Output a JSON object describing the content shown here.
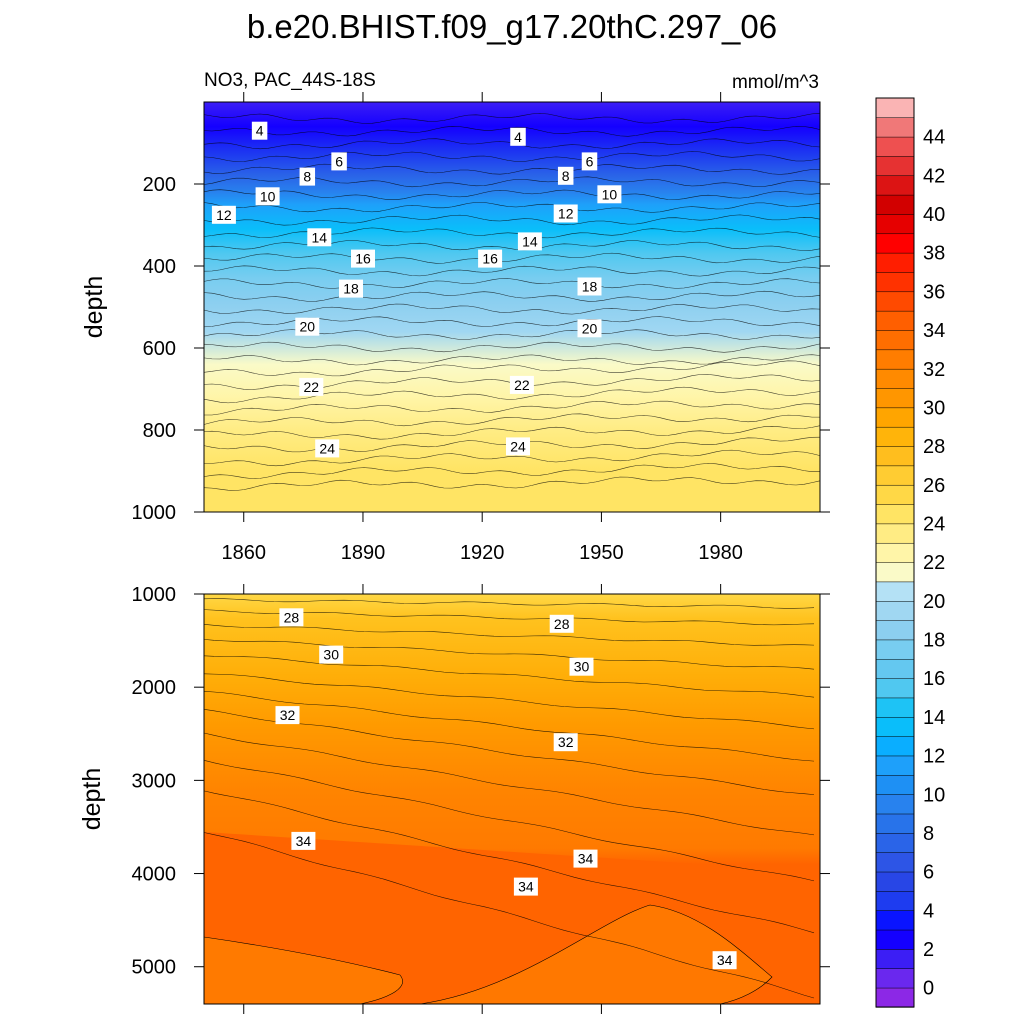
{
  "chart_data": {
    "type": "contour",
    "title": "b.e20.BHIST.f09_g17.20thC.297_06",
    "subtitle_left": "NO3, PAC_44S-18S",
    "units": "mmol/m^3",
    "xlabel": "",
    "ylabel": "depth",
    "xlim": [
      1850,
      2005
    ],
    "x_ticks": [
      1860,
      1890,
      1920,
      1950,
      1980
    ],
    "x_tick_labels": [
      "1860",
      "1890",
      "1920",
      "1950",
      "1980"
    ],
    "panels": [
      {
        "name": "upper ocean",
        "ylim": [
          0,
          1000
        ],
        "y_ticks": [
          200,
          400,
          600,
          800,
          1000
        ],
        "y_tick_labels": [
          "200",
          "400",
          "600",
          "800",
          "1000"
        ],
        "profile_depths": [
          0,
          60,
          130,
          180,
          220,
          250,
          310,
          370,
          430,
          490,
          560,
          640,
          720,
          800,
          900,
          1000
        ],
        "profile_values": [
          2.8,
          3.5,
          5.5,
          8,
          10,
          12,
          14,
          16,
          18,
          19.5,
          20.8,
          22,
          23,
          24,
          25,
          25.8
        ],
        "contour_labels": [
          {
            "value": "4",
            "year": 1864,
            "depth": 70
          },
          {
            "value": "4",
            "year": 1929,
            "depth": 85
          },
          {
            "value": "6",
            "year": 1884,
            "depth": 145
          },
          {
            "value": "6",
            "year": 1947,
            "depth": 145
          },
          {
            "value": "8",
            "year": 1876,
            "depth": 182
          },
          {
            "value": "8",
            "year": 1941,
            "depth": 180
          },
          {
            "value": "10",
            "year": 1866,
            "depth": 230
          },
          {
            "value": "10",
            "year": 1952,
            "depth": 225
          },
          {
            "value": "12",
            "year": 1855,
            "depth": 275
          },
          {
            "value": "12",
            "year": 1941,
            "depth": 272
          },
          {
            "value": "14",
            "year": 1879,
            "depth": 330
          },
          {
            "value": "14",
            "year": 1932,
            "depth": 340
          },
          {
            "value": "16",
            "year": 1890,
            "depth": 382
          },
          {
            "value": "16",
            "year": 1922,
            "depth": 382
          },
          {
            "value": "18",
            "year": 1887,
            "depth": 455
          },
          {
            "value": "18",
            "year": 1947,
            "depth": 450
          },
          {
            "value": "20",
            "year": 1876,
            "depth": 548
          },
          {
            "value": "20",
            "year": 1947,
            "depth": 552
          },
          {
            "value": "22",
            "year": 1877,
            "depth": 695
          },
          {
            "value": "22",
            "year": 1930,
            "depth": 690
          },
          {
            "value": "24",
            "year": 1881,
            "depth": 845
          },
          {
            "value": "24",
            "year": 1929,
            "depth": 840
          }
        ]
      },
      {
        "name": "deep ocean",
        "ylim": [
          1000,
          5400
        ],
        "y_ticks": [
          1000,
          2000,
          3000,
          4000,
          5000
        ],
        "y_tick_labels": [
          "1000",
          "2000",
          "3000",
          "4000",
          "5000"
        ],
        "contour_labels": [
          {
            "value": "28",
            "year": 1872,
            "depth": 1250
          },
          {
            "value": "28",
            "year": 1940,
            "depth": 1320
          },
          {
            "value": "30",
            "year": 1882,
            "depth": 1650
          },
          {
            "value": "30",
            "year": 1945,
            "depth": 1780
          },
          {
            "value": "32",
            "year": 1871,
            "depth": 2300
          },
          {
            "value": "32",
            "year": 1941,
            "depth": 2590
          },
          {
            "value": "34",
            "year": 1875,
            "depth": 3650
          },
          {
            "value": "34",
            "year": 1931,
            "depth": 4140
          },
          {
            "value": "34",
            "year": 1946,
            "depth": 3840
          },
          {
            "value": "34",
            "year": 1981,
            "depth": 4930
          }
        ]
      }
    ],
    "colorbar": {
      "levels": [
        0,
        1,
        2,
        3,
        4,
        5,
        6,
        7,
        8,
        9,
        10,
        11,
        12,
        13,
        14,
        15,
        16,
        17,
        18,
        19,
        20,
        21,
        22,
        23,
        24,
        25,
        26,
        27,
        28,
        29,
        30,
        31,
        32,
        33,
        34,
        35,
        36,
        37,
        38,
        39,
        40,
        41,
        42,
        43,
        44,
        45,
        46
      ],
      "tick_labels": [
        "0",
        "2",
        "4",
        "6",
        "8",
        "10",
        "12",
        "14",
        "16",
        "18",
        "20",
        "22",
        "24",
        "26",
        "28",
        "30",
        "32",
        "34",
        "36",
        "38",
        "40",
        "42",
        "44"
      ],
      "colors": [
        "#8c28e6",
        "#6a28ee",
        "#3c1ef5",
        "#1400ff",
        "#0a14ff",
        "#1e3cf0",
        "#2846e6",
        "#2d55e6",
        "#2a64e8",
        "#2873ea",
        "#2882ee",
        "#1e90f4",
        "#1ea0fa",
        "#0aaeff",
        "#0abefa",
        "#1ec3f5",
        "#50c8f0",
        "#64c8f0",
        "#78cdf0",
        "#8ccff0",
        "#a0d7f2",
        "#b4e1f5",
        "#fafac8",
        "#fff5a8",
        "#ffec84",
        "#ffe464",
        "#ffd846",
        "#ffcc32",
        "#ffbe1e",
        "#ffb40a",
        "#ffa500",
        "#ff9600",
        "#ff8a00",
        "#ff7d00",
        "#ff6e00",
        "#ff5f00",
        "#ff4a00",
        "#ff3200",
        "#ff1e00",
        "#ff0000",
        "#e60000",
        "#d20000",
        "#dc1414",
        "#e63232",
        "#ee5050",
        "#f07878",
        "#fab4b4"
      ]
    }
  }
}
